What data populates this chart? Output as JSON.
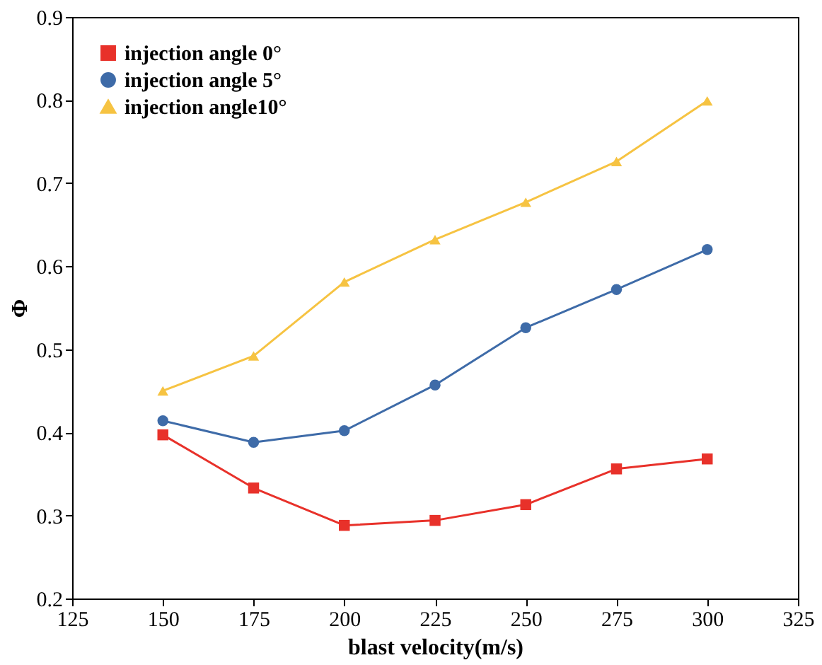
{
  "chart_data": {
    "type": "line",
    "xlabel": "blast velocity(m/s)",
    "ylabel": "Φ",
    "x": [
      150,
      175,
      200,
      225,
      250,
      275,
      300
    ],
    "series": [
      {
        "name": "injection angle 0°",
        "color": "#e8312a",
        "marker": "square",
        "values": [
          0.397,
          0.333,
          0.288,
          0.294,
          0.313,
          0.356,
          0.368
        ]
      },
      {
        "name": "injection angle 5°",
        "color": "#3e6ba8",
        "marker": "circle",
        "values": [
          0.414,
          0.388,
          0.402,
          0.457,
          0.526,
          0.572,
          0.62
        ]
      },
      {
        "name": "injection angle10°",
        "color": "#f6c342",
        "marker": "triangle",
        "values": [
          0.45,
          0.492,
          0.581,
          0.632,
          0.677,
          0.726,
          0.799
        ]
      }
    ],
    "xlim": [
      125,
      325
    ],
    "xticks": [
      125,
      150,
      175,
      200,
      225,
      250,
      275,
      300,
      325
    ],
    "ylim": [
      0.2,
      0.9
    ],
    "yticks": [
      0.2,
      0.3,
      0.4,
      0.5,
      0.6,
      0.7,
      0.8,
      0.9
    ],
    "legend": "top left",
    "grid": false,
    "line_style": "solid"
  }
}
